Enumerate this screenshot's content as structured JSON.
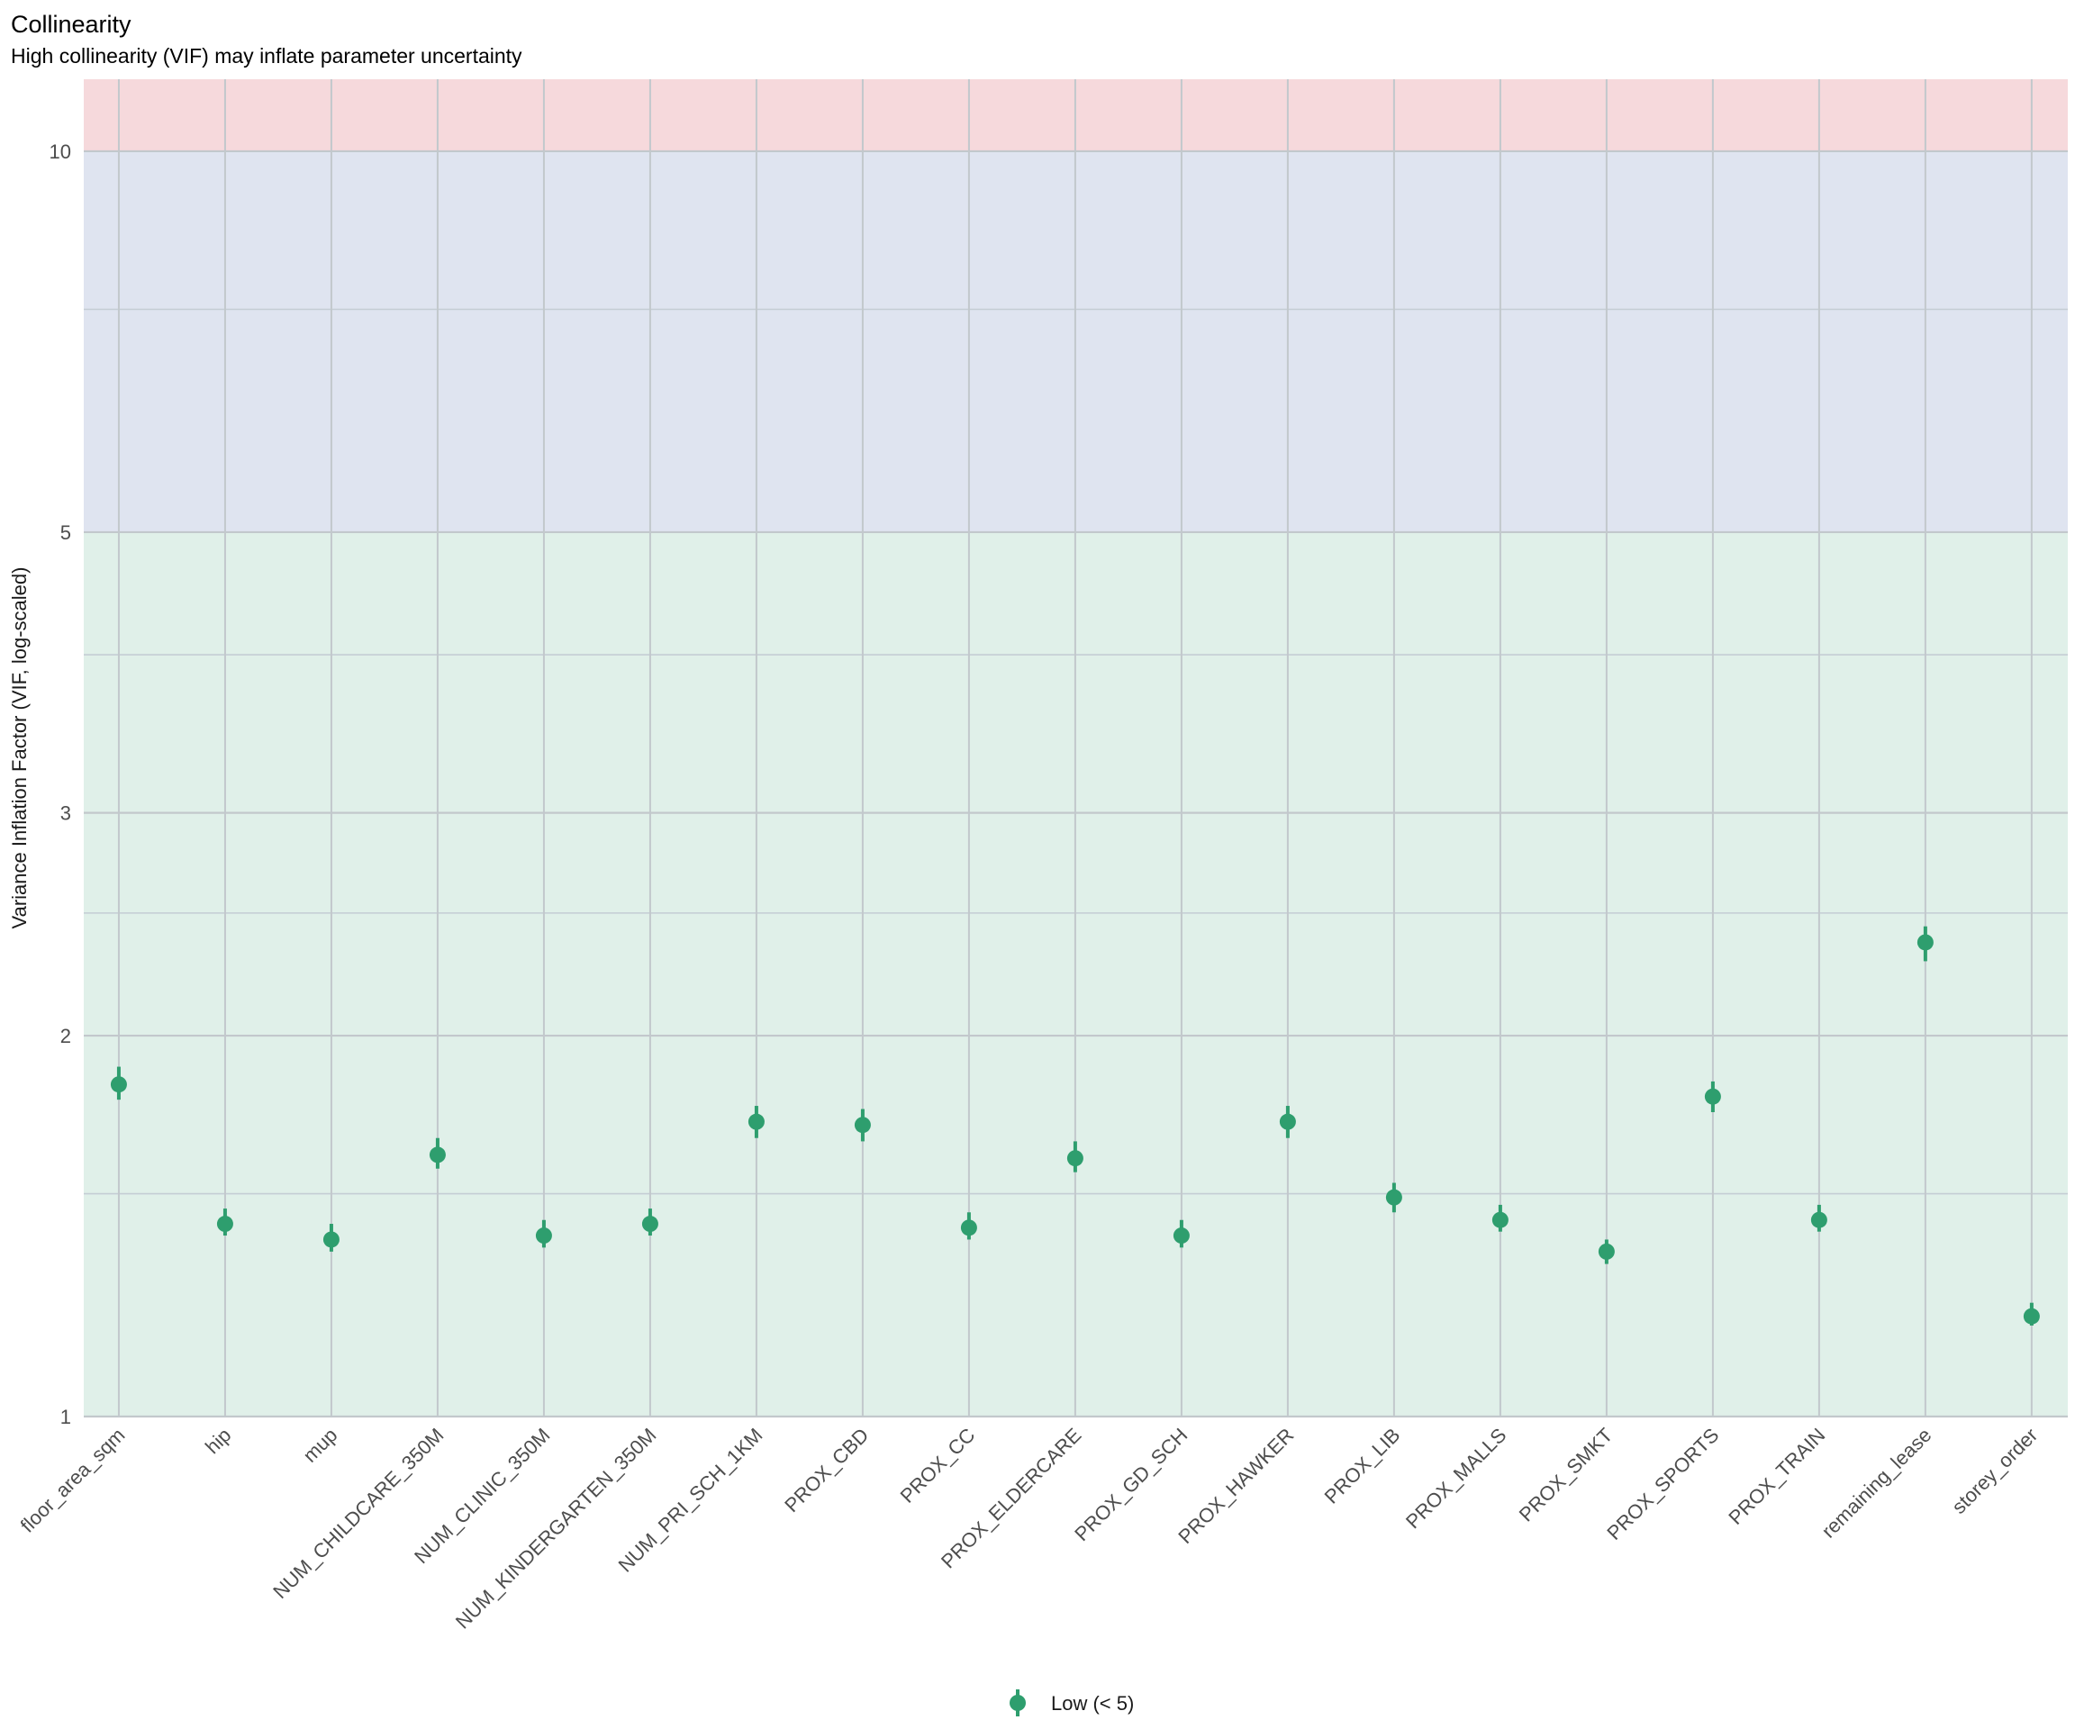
{
  "chart_data": {
    "type": "scatter",
    "title": "Collinearity",
    "subtitle": "High collinearity (VIF) may inflate parameter uncertainty",
    "xlabel": "",
    "ylabel": "Variance Inflation Factor (VIF, log-scaled)",
    "y_scale": "log",
    "ylim": [
      1,
      11.4
    ],
    "y_ticks": [
      1,
      2,
      3,
      5,
      10
    ],
    "y_minor_ticks": [
      1.5,
      2.5,
      4,
      7.5
    ],
    "grid": true,
    "bands": [
      {
        "from": 1,
        "to": 5,
        "color": "#e0f0e9"
      },
      {
        "from": 5,
        "to": 10,
        "color": "#dfe4f0"
      },
      {
        "from": 10,
        "to": 11.4,
        "color": "#f6d9dc"
      }
    ],
    "categories": [
      "floor_area_sqm",
      "hip",
      "mup",
      "NUM_CHILDCARE_350M",
      "NUM_CLINIC_350M",
      "NUM_KINDERGARTEN_350M",
      "NUM_PRI_SCH_1KM",
      "PROX_CBD",
      "PROX_CC",
      "PROX_ELDERCARE",
      "PROX_GD_SCH",
      "PROX_HAWKER",
      "PROX_LIB",
      "PROX_MALLS",
      "PROX_SMKT",
      "PROX_SPORTS",
      "PROX_TRAIN",
      "remaining_lease",
      "storey_order"
    ],
    "series": [
      {
        "name": "Low (< 5)",
        "color": "#2e9e6e",
        "values": [
          1.83,
          1.42,
          1.38,
          1.61,
          1.39,
          1.42,
          1.71,
          1.7,
          1.41,
          1.6,
          1.39,
          1.71,
          1.49,
          1.43,
          1.35,
          1.79,
          1.43,
          2.37,
          1.2
        ],
        "ci_low": [
          1.78,
          1.39,
          1.35,
          1.57,
          1.36,
          1.39,
          1.66,
          1.65,
          1.38,
          1.56,
          1.36,
          1.66,
          1.45,
          1.4,
          1.32,
          1.74,
          1.4,
          2.29,
          1.18
        ],
        "ci_high": [
          1.89,
          1.46,
          1.42,
          1.66,
          1.43,
          1.46,
          1.76,
          1.75,
          1.45,
          1.65,
          1.43,
          1.76,
          1.53,
          1.47,
          1.38,
          1.84,
          1.47,
          2.44,
          1.23
        ]
      }
    ],
    "legend": {
      "placement": "bottom",
      "label": "Low (< 5)"
    }
  }
}
